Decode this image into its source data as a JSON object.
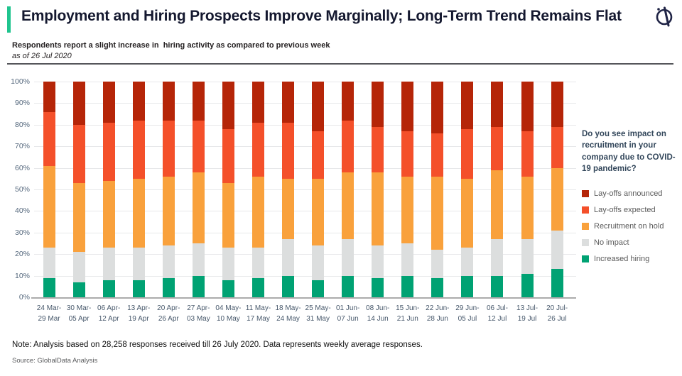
{
  "header": {
    "title": "Employment and Hiring Prospects Improve Marginally; Long-Term Trend Remains Flat",
    "accent_color": "#1FC48E",
    "logo_color": "#202446"
  },
  "subtitle": {
    "line1": "Respondents report a slight increase in  hiring activity as compared to previous week",
    "line2": "as of 26 Jul 2020"
  },
  "question": "Do you see impact on recruitment in your company due to COVID-19 pandemic?",
  "chart_data": {
    "type": "bar",
    "variant": "100%-stacked-column",
    "categories": [
      [
        "24 Mar-",
        "29 Mar"
      ],
      [
        "30 Mar-",
        "05 Apr"
      ],
      [
        "06 Apr-",
        "12 Apr"
      ],
      [
        "13 Apr-",
        "19 Apr"
      ],
      [
        "20 Apr-",
        "26 Apr"
      ],
      [
        "27 Apr-",
        "03 May"
      ],
      [
        "04 May-",
        "10 May"
      ],
      [
        "11 May-",
        "17 May"
      ],
      [
        "18 May-",
        "24 May"
      ],
      [
        "25 May-",
        "31 May"
      ],
      [
        "01 Jun-",
        "07 Jun"
      ],
      [
        "08 Jun-",
        "14 Jun"
      ],
      [
        "15 Jun-",
        "21 Jun"
      ],
      [
        "22 Jun-",
        "28 Jun"
      ],
      [
        "29 Jun-",
        "05 Jul"
      ],
      [
        "06 Jul-",
        "12 Jul"
      ],
      [
        "13 Jul-",
        "19 Jul"
      ],
      [
        "20 Jul-",
        "26 Jul"
      ]
    ],
    "series": [
      {
        "name": "Increased hiring",
        "color": "#00A273",
        "values": [
          9,
          7,
          8,
          8,
          9,
          10,
          8,
          9,
          10,
          8,
          10,
          9,
          10,
          9,
          10,
          10,
          11,
          13
        ]
      },
      {
        "name": "No impact",
        "color": "#DCDEDE",
        "values": [
          14,
          14,
          15,
          15,
          15,
          15,
          15,
          14,
          17,
          16,
          17,
          15,
          15,
          13,
          13,
          17,
          16,
          18
        ]
      },
      {
        "name": "Recruitment on hold",
        "color": "#F9A13C",
        "values": [
          38,
          32,
          31,
          32,
          32,
          33,
          30,
          33,
          28,
          31,
          31,
          34,
          31,
          34,
          32,
          32,
          29,
          29
        ]
      },
      {
        "name": "Lay-offs expected",
        "color": "#F4502A",
        "values": [
          25,
          27,
          27,
          27,
          26,
          24,
          25,
          25,
          26,
          22,
          24,
          21,
          21,
          20,
          23,
          20,
          21,
          19
        ]
      },
      {
        "name": "Lay-offs announced",
        "color": "#B52508",
        "values": [
          14,
          20,
          19,
          18,
          18,
          18,
          22,
          19,
          19,
          23,
          18,
          21,
          23,
          24,
          22,
          21,
          23,
          21
        ]
      }
    ],
    "y_ticks": [
      "0%",
      "10%",
      "20%",
      "30%",
      "40%",
      "50%",
      "60%",
      "70%",
      "80%",
      "90%",
      "100%"
    ],
    "ylim": [
      0,
      100
    ],
    "grid": true,
    "legend_position": "right",
    "stack_order_bottom_to_top": [
      "Increased hiring",
      "No impact",
      "Recruitment on hold",
      "Lay-offs expected",
      "Lay-offs announced"
    ]
  },
  "note": "Note: Analysis based on 28,258 responses received till 26 July 2020. Data represents weekly average responses.",
  "source": "Source: GlobalData Analysis"
}
